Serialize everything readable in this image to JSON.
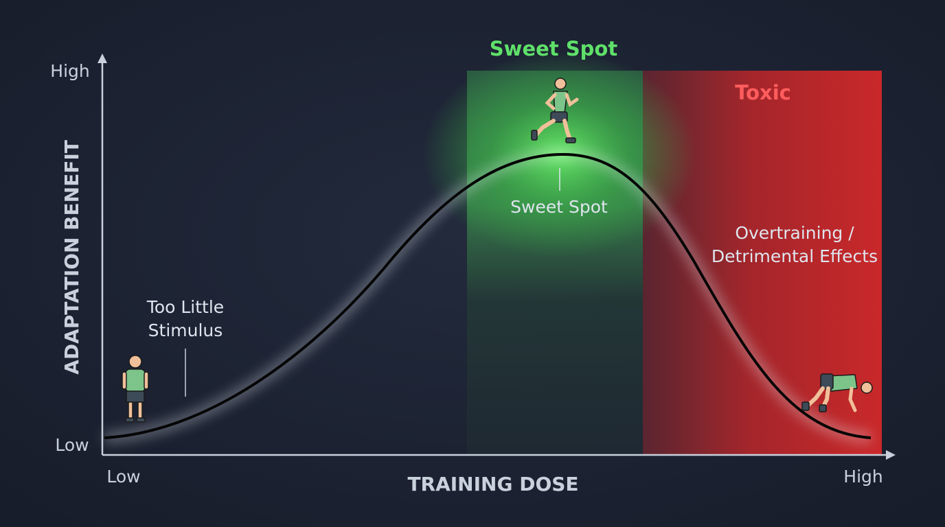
{
  "axes": {
    "y": {
      "label": "ADAPTATION BENEFIT",
      "high": "High",
      "low": "Low"
    },
    "x": {
      "label": "TRAINING DOSE",
      "low": "Low",
      "high": "High"
    }
  },
  "zones": [
    {
      "title": "Sweet Spot"
    },
    {
      "title": "Toxic"
    }
  ],
  "annotations": [
    {
      "lines": [
        "Too Little",
        "Stimulus"
      ]
    },
    {
      "lines": [
        "Sweet Spot"
      ]
    },
    {
      "lines": [
        "Overtraining /",
        "Detrimental Effects"
      ]
    }
  ]
}
